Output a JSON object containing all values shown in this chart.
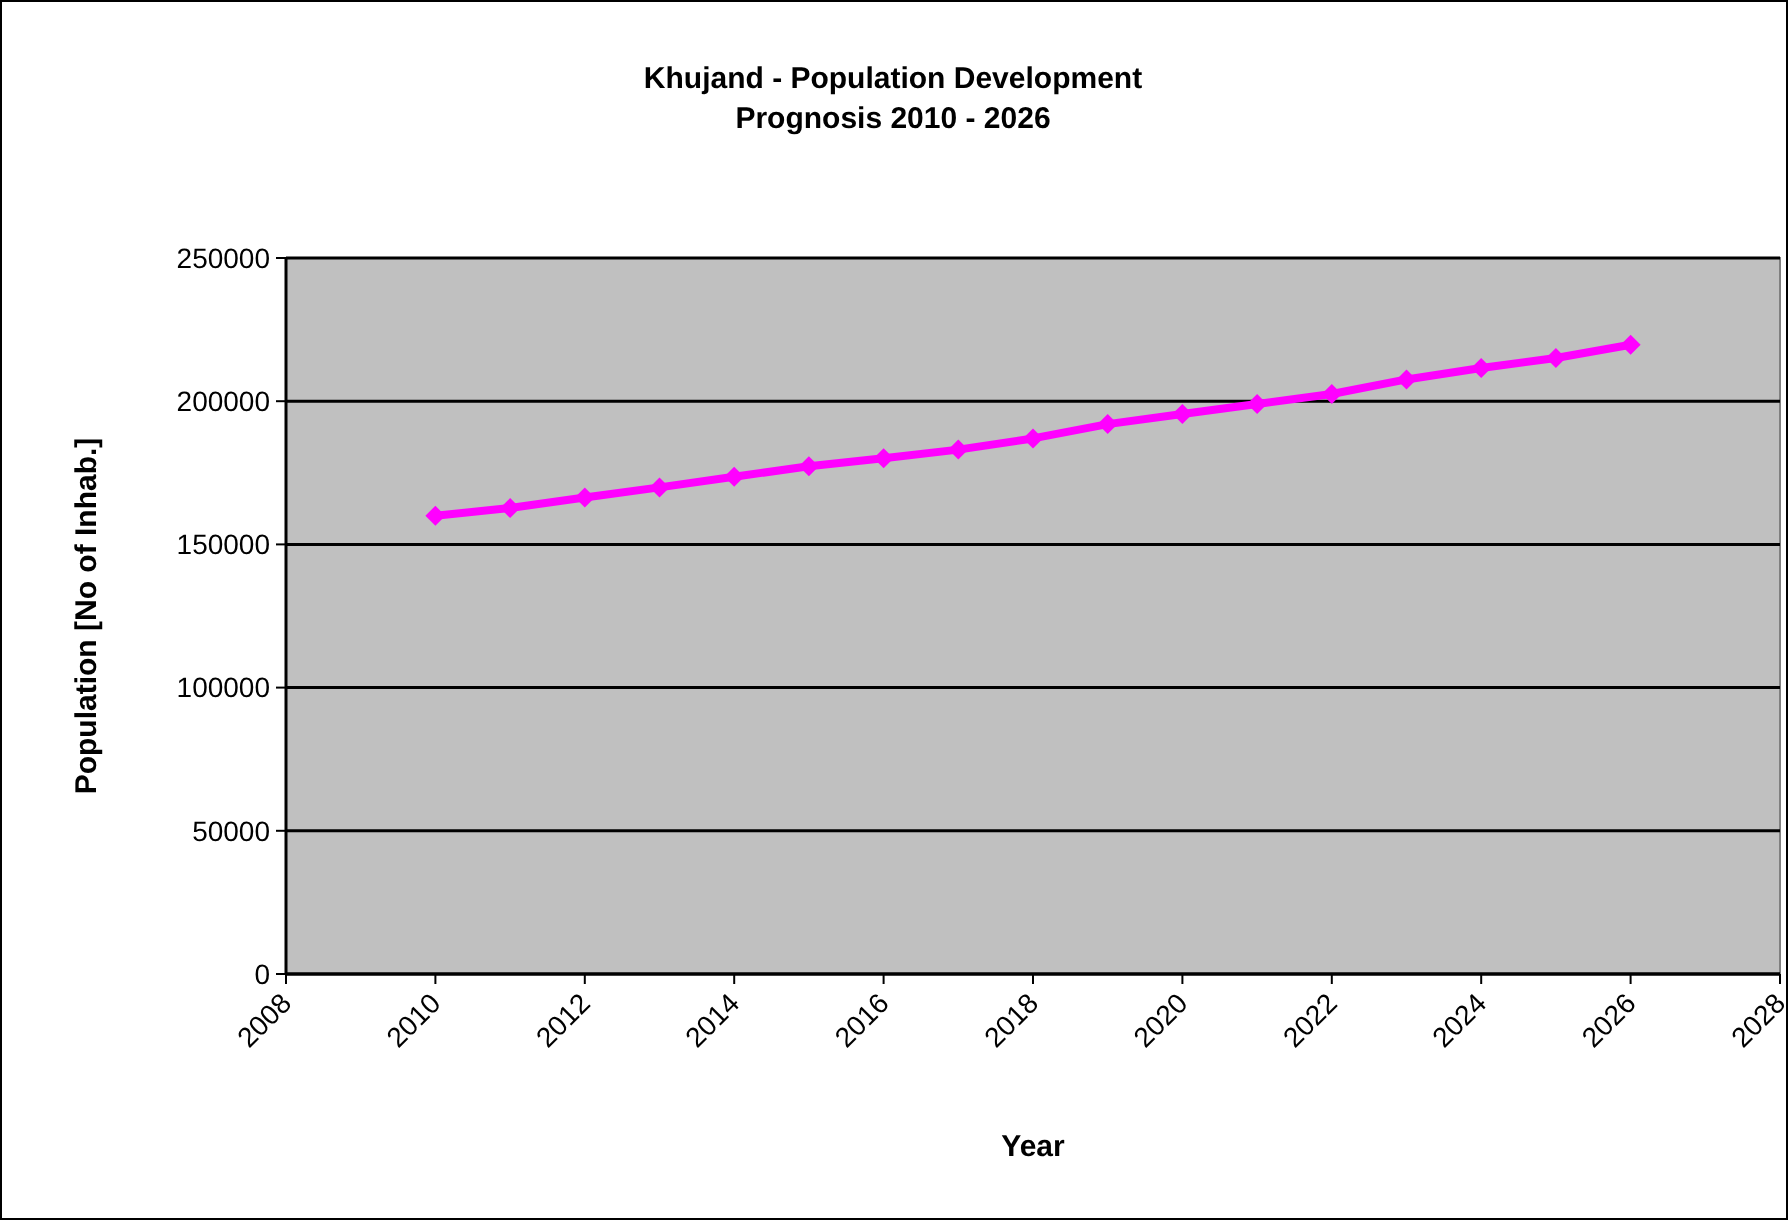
{
  "chart_data": {
    "type": "line",
    "title": "Khujand - Population Development\nPrognosis 2010 - 2026",
    "xlabel": "Year",
    "ylabel": "Population [No of Inhab.]",
    "x": [
      2010,
      2011,
      2012,
      2013,
      2014,
      2015,
      2016,
      2017,
      2018,
      2019,
      2020,
      2021,
      2022,
      2023,
      2024,
      2025,
      2026
    ],
    "series": [
      {
        "color": "#ff00ff",
        "values": [
          160000,
          162700,
          166400,
          169900,
          173600,
          177300,
          180100,
          183100,
          187000,
          192000,
          195500,
          199000,
          202500,
          207600,
          211600,
          215100,
          219700
        ]
      }
    ],
    "xlim": [
      2008,
      2028
    ],
    "xticks": [
      2008,
      2010,
      2012,
      2014,
      2016,
      2018,
      2020,
      2022,
      2024,
      2026,
      2028
    ],
    "ylim": [
      0,
      250000
    ],
    "yticks": [
      0,
      50000,
      100000,
      150000,
      200000,
      250000
    ],
    "grid": "y",
    "marker": "diamond",
    "line_style": "solid"
  }
}
